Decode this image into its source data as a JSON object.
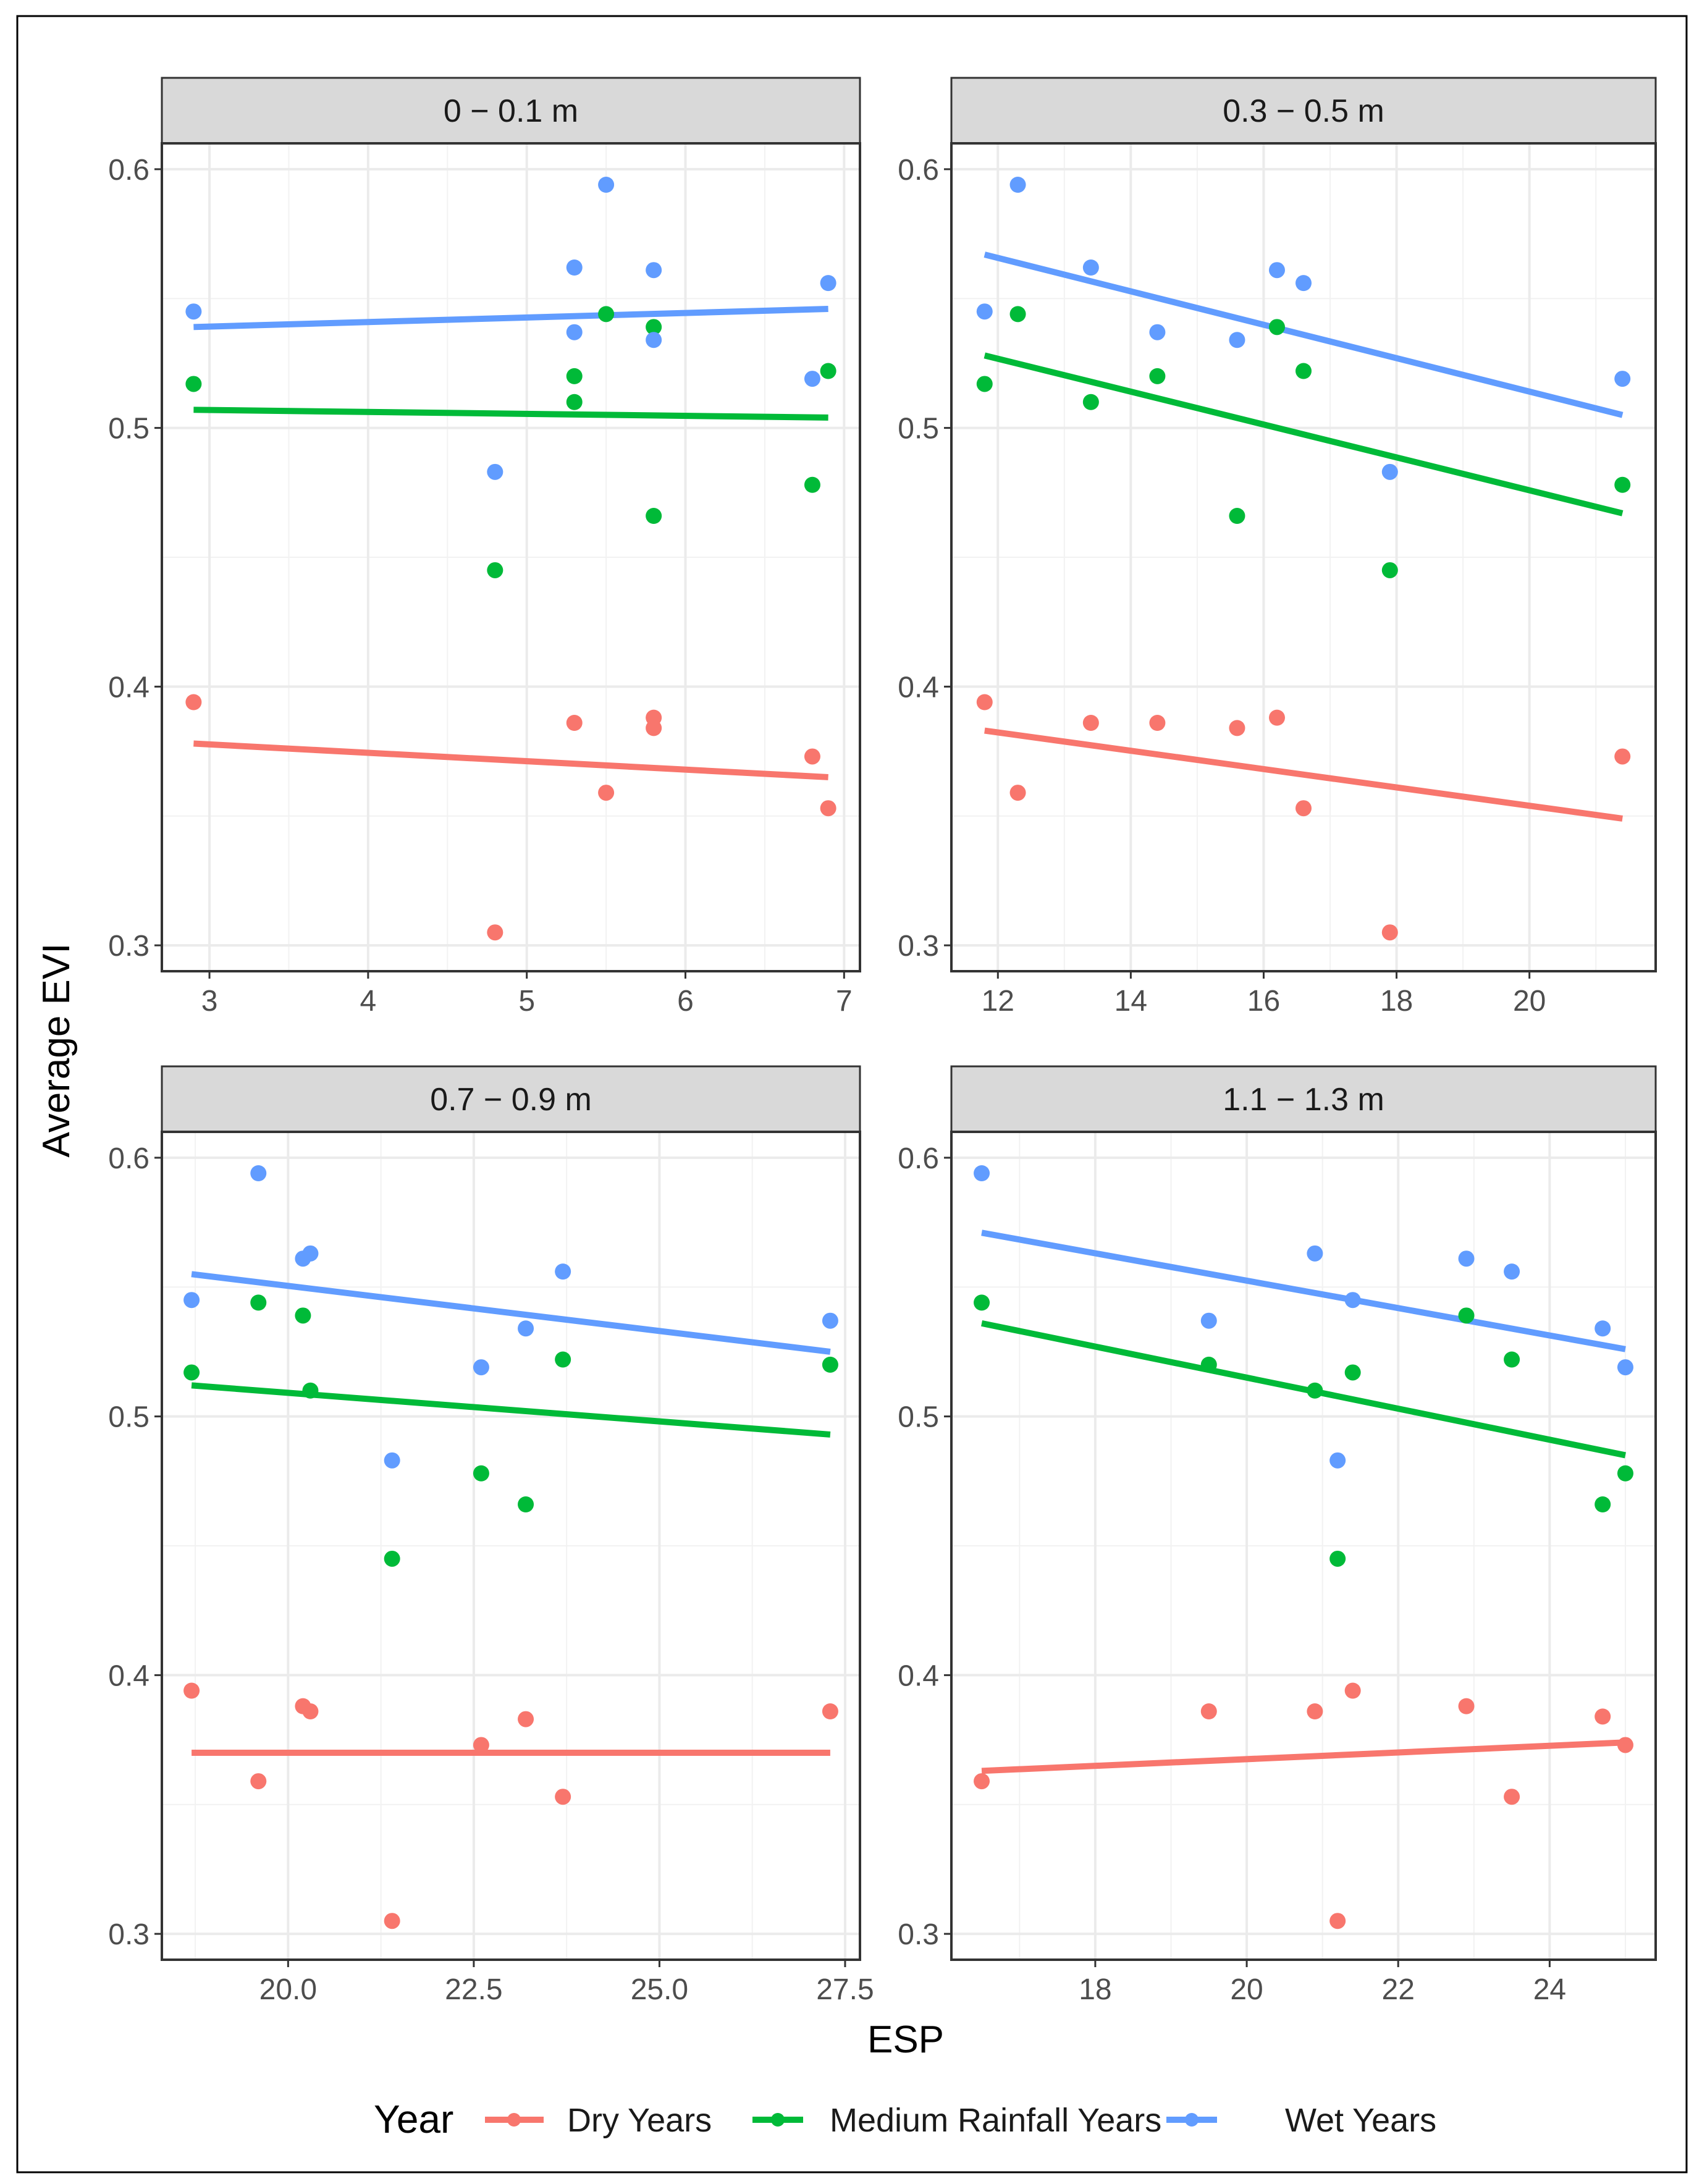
{
  "chart_data": {
    "type": "scatter",
    "title": "",
    "xlabel": "ESP",
    "ylabel": "Average EVI",
    "legend": {
      "title": "Year",
      "placement": "bottom",
      "entries": [
        "Dry Years",
        "Medium Rainfall Years",
        "Wet Years"
      ]
    },
    "colors": {
      "Dry Years": "#F8766D",
      "Medium Rainfall Years": "#00BA38",
      "Wet Years": "#619CFF"
    },
    "ylim": [
      0.29,
      0.61
    ],
    "yticks": [
      0.3,
      0.4,
      0.5,
      0.6
    ],
    "ytick_labels": [
      "0.3",
      "0.4",
      "0.5",
      "0.6"
    ],
    "grid": true,
    "panels": [
      {
        "strip": "0 − 0.1 m",
        "xlim": [
          2.7,
          7.1
        ],
        "xticks": [
          3,
          4,
          5,
          6,
          7
        ],
        "xtick_labels": [
          "3",
          "4",
          "5",
          "6",
          "7"
        ],
        "series": [
          {
            "name": "Dry Years",
            "x": [
              2.9,
              4.8,
              5.3,
              5.5,
              5.8,
              5.8,
              6.8,
              6.9
            ],
            "y": [
              0.394,
              0.305,
              0.386,
              0.359,
              0.388,
              0.384,
              0.373,
              0.353
            ],
            "fit": [
              [
                2.9,
                0.378
              ],
              [
                6.9,
                0.365
              ]
            ]
          },
          {
            "name": "Medium Rainfall Years",
            "x": [
              2.9,
              4.8,
              5.3,
              5.3,
              5.5,
              5.8,
              5.8,
              6.8,
              6.9
            ],
            "y": [
              0.517,
              0.445,
              0.52,
              0.51,
              0.544,
              0.539,
              0.466,
              0.478,
              0.522
            ],
            "fit": [
              [
                2.9,
                0.507
              ],
              [
                6.9,
                0.504
              ]
            ]
          },
          {
            "name": "Wet Years",
            "x": [
              2.9,
              4.8,
              5.3,
              5.3,
              5.5,
              5.8,
              5.8,
              6.8,
              6.9
            ],
            "y": [
              0.545,
              0.483,
              0.562,
              0.537,
              0.594,
              0.561,
              0.534,
              0.519,
              0.556
            ],
            "fit": [
              [
                2.9,
                0.539
              ],
              [
                6.9,
                0.546
              ]
            ]
          }
        ]
      },
      {
        "strip": "0.3 − 0.5 m",
        "xlim": [
          11.3,
          21.9
        ],
        "xticks": [
          12,
          14,
          16,
          18,
          20
        ],
        "xtick_labels": [
          "12",
          "14",
          "16",
          "18",
          "20"
        ],
        "series": [
          {
            "name": "Dry Years",
            "x": [
              11.8,
              12.3,
              13.4,
              14.4,
              15.6,
              16.2,
              16.6,
              17.9,
              21.4
            ],
            "y": [
              0.394,
              0.359,
              0.386,
              0.386,
              0.384,
              0.388,
              0.353,
              0.305,
              0.373
            ],
            "fit": [
              [
                11.8,
                0.383
              ],
              [
                21.4,
                0.349
              ]
            ]
          },
          {
            "name": "Medium Rainfall Years",
            "x": [
              11.8,
              12.3,
              13.4,
              14.4,
              15.6,
              16.2,
              16.6,
              17.9,
              21.4
            ],
            "y": [
              0.517,
              0.544,
              0.51,
              0.52,
              0.466,
              0.539,
              0.522,
              0.445,
              0.478
            ],
            "fit": [
              [
                11.8,
                0.528
              ],
              [
                21.4,
                0.467
              ]
            ]
          },
          {
            "name": "Wet Years",
            "x": [
              11.8,
              12.3,
              13.4,
              14.4,
              15.6,
              16.2,
              16.6,
              17.9,
              21.4
            ],
            "y": [
              0.545,
              0.594,
              0.562,
              0.537,
              0.534,
              0.561,
              0.556,
              0.483,
              0.519
            ],
            "fit": [
              [
                11.8,
                0.567
              ],
              [
                21.4,
                0.505
              ]
            ]
          }
        ]
      },
      {
        "strip": "0.7 − 0.9 m",
        "xlim": [
          18.3,
          27.7
        ],
        "xticks": [
          20,
          22.5,
          25,
          27.5
        ],
        "xtick_labels": [
          "20.0",
          "22.5",
          "25.0",
          "27.5"
        ],
        "series": [
          {
            "name": "Dry Years",
            "x": [
              18.7,
              19.6,
              20.2,
              20.3,
              21.4,
              22.6,
              23.2,
              23.7,
              27.3
            ],
            "y": [
              0.394,
              0.359,
              0.388,
              0.386,
              0.305,
              0.373,
              0.383,
              0.353,
              0.386
            ],
            "fit": [
              [
                18.7,
                0.37
              ],
              [
                27.3,
                0.37
              ]
            ]
          },
          {
            "name": "Medium Rainfall Years",
            "x": [
              18.7,
              19.6,
              20.2,
              20.3,
              21.4,
              22.6,
              23.2,
              23.7,
              27.3
            ],
            "y": [
              0.517,
              0.544,
              0.539,
              0.51,
              0.445,
              0.478,
              0.466,
              0.522,
              0.52
            ],
            "fit": [
              [
                18.7,
                0.512
              ],
              [
                27.3,
                0.493
              ]
            ]
          },
          {
            "name": "Wet Years",
            "x": [
              18.7,
              19.6,
              20.2,
              20.3,
              21.4,
              22.6,
              23.2,
              23.7,
              27.3
            ],
            "y": [
              0.545,
              0.594,
              0.561,
              0.563,
              0.483,
              0.519,
              0.534,
              0.556,
              0.537
            ],
            "fit": [
              [
                18.7,
                0.555
              ],
              [
                27.3,
                0.525
              ]
            ]
          }
        ]
      },
      {
        "strip": "1.1 − 1.3 m",
        "xlim": [
          16.1,
          25.4
        ],
        "xticks": [
          18,
          20,
          22,
          24
        ],
        "xtick_labels": [
          "18",
          "20",
          "22",
          "24"
        ],
        "series": [
          {
            "name": "Dry Years",
            "x": [
              16.5,
              19.5,
              20.9,
              21.2,
              21.4,
              22.9,
              23.5,
              24.7,
              25.0
            ],
            "y": [
              0.359,
              0.386,
              0.386,
              0.305,
              0.394,
              0.388,
              0.353,
              0.384,
              0.373
            ],
            "fit": [
              [
                16.5,
                0.363
              ],
              [
                25.0,
                0.374
              ]
            ]
          },
          {
            "name": "Medium Rainfall Years",
            "x": [
              16.5,
              19.5,
              20.9,
              21.2,
              21.4,
              22.9,
              23.5,
              24.7,
              25.0
            ],
            "y": [
              0.544,
              0.52,
              0.51,
              0.445,
              0.517,
              0.539,
              0.522,
              0.466,
              0.478
            ],
            "fit": [
              [
                16.5,
                0.536
              ],
              [
                25.0,
                0.485
              ]
            ]
          },
          {
            "name": "Wet Years",
            "x": [
              16.5,
              19.5,
              20.9,
              21.2,
              21.4,
              22.9,
              23.5,
              24.7,
              25.0
            ],
            "y": [
              0.594,
              0.537,
              0.563,
              0.483,
              0.545,
              0.561,
              0.556,
              0.534,
              0.519
            ],
            "fit": [
              [
                16.5,
                0.571
              ],
              [
                25.0,
                0.526
              ]
            ]
          }
        ]
      }
    ]
  }
}
